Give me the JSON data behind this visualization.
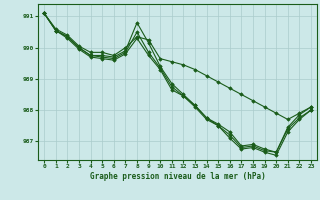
{
  "title": "Graphe pression niveau de la mer (hPa)",
  "bg_color": "#cce8e8",
  "grid_color": "#aacccc",
  "line_color": "#1a5c1a",
  "marker_color": "#1a5c1a",
  "xlim": [
    -0.5,
    23.5
  ],
  "ylim": [
    986.4,
    991.4
  ],
  "yticks": [
    987,
    988,
    989,
    990,
    991
  ],
  "xticks": [
    0,
    1,
    2,
    3,
    4,
    5,
    6,
    7,
    8,
    9,
    10,
    11,
    12,
    13,
    14,
    15,
    16,
    17,
    18,
    19,
    20,
    21,
    22,
    23
  ],
  "series": [
    [
      991.1,
      990.6,
      990.4,
      990.05,
      989.85,
      989.85,
      989.75,
      990.0,
      990.35,
      990.25,
      989.65,
      989.55,
      989.45,
      989.3,
      989.1,
      988.9,
      988.7,
      988.5,
      988.3,
      988.1,
      987.9,
      987.7,
      987.9,
      988.1
    ],
    [
      991.1,
      990.55,
      990.35,
      990.0,
      989.75,
      989.75,
      989.7,
      989.9,
      990.8,
      990.15,
      989.4,
      988.85,
      988.5,
      988.15,
      987.75,
      987.55,
      987.3,
      986.85,
      986.9,
      986.75,
      986.65,
      987.45,
      987.85,
      988.1
    ],
    [
      991.1,
      990.55,
      990.35,
      990.0,
      989.75,
      989.7,
      989.65,
      989.85,
      990.5,
      989.85,
      989.35,
      988.75,
      988.45,
      988.1,
      987.7,
      987.5,
      987.2,
      986.8,
      986.85,
      986.7,
      986.65,
      987.4,
      987.75,
      988.0
    ],
    [
      991.1,
      990.55,
      990.3,
      989.95,
      989.7,
      989.65,
      989.6,
      989.8,
      990.3,
      989.75,
      989.3,
      988.65,
      988.45,
      988.15,
      987.75,
      987.5,
      987.1,
      986.75,
      986.8,
      986.65,
      986.55,
      987.3,
      987.7,
      988.0
    ]
  ]
}
